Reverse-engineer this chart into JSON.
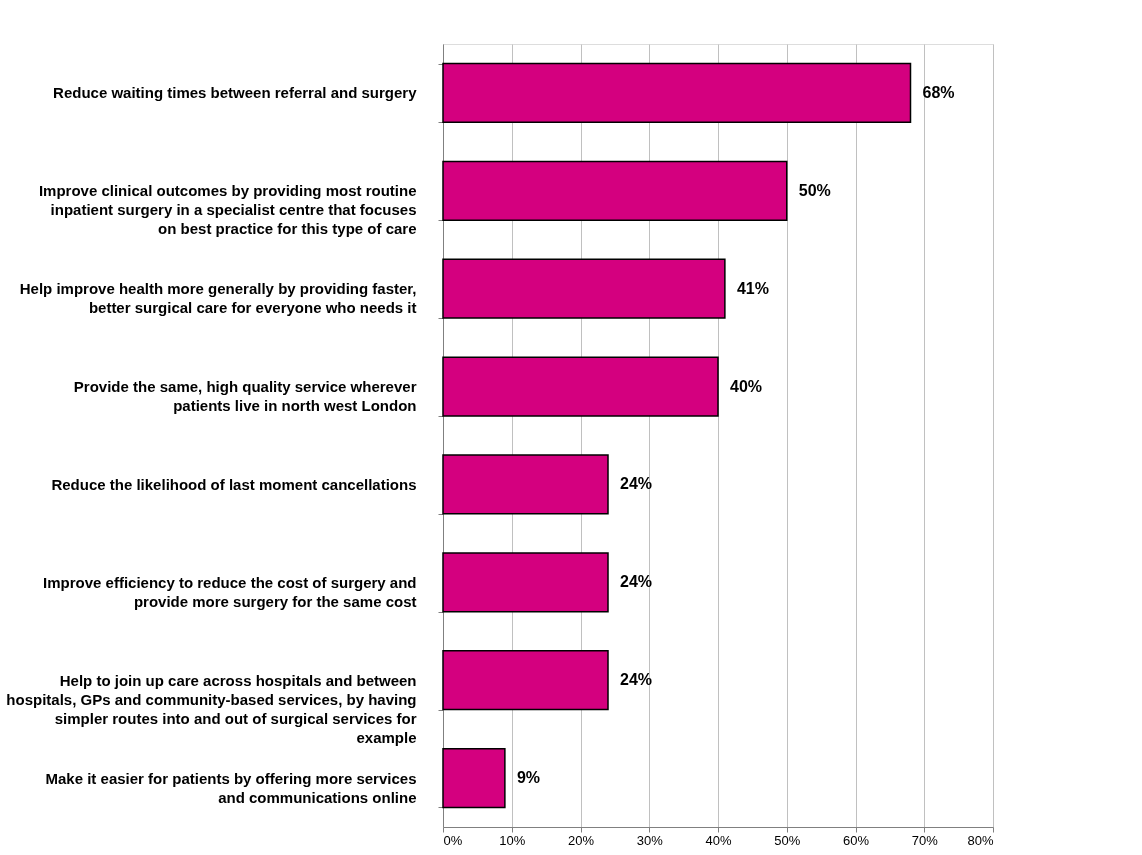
{
  "chart_data": {
    "type": "bar",
    "orientation": "horizontal",
    "categories": [
      "Reduce waiting times between referral and surgery",
      "Improve clinical outcomes by providing most routine inpatient surgery in a specialist centre that focuses on best practice for this type of care",
      "Help improve health more generally by providing faster, better surgical care for everyone who needs it",
      "Provide the same, high quality service wherever patients live in north west London",
      "Reduce the likelihood of last moment cancellations",
      "Improve efficiency to reduce the cost of surgery and provide more surgery for the same cost",
      "Help to join up care across hospitals and between hospitals, GPs and community-based services, by having simpler routes into and out of surgical services for example",
      "Make it easier for patients by offering more services and communications online"
    ],
    "values": [
      68,
      50,
      41,
      40,
      24,
      24,
      24,
      9
    ],
    "value_labels": [
      "68%",
      "50%",
      "41%",
      "40%",
      "24%",
      "24%",
      "24%",
      "9%"
    ],
    "color": "#d4007f",
    "xlim": [
      0,
      80
    ],
    "xticks": [
      {
        "value": 0,
        "label": "0%"
      },
      {
        "value": 10,
        "label": "10%"
      },
      {
        "value": 20,
        "label": "20%"
      },
      {
        "value": 30,
        "label": "30%"
      },
      {
        "value": 40,
        "label": "40%"
      },
      {
        "value": 50,
        "label": "50%"
      },
      {
        "value": 60,
        "label": "60%"
      },
      {
        "value": 70,
        "label": "70%"
      },
      {
        "value": 80,
        "label": "80%"
      }
    ],
    "grid": "x"
  }
}
